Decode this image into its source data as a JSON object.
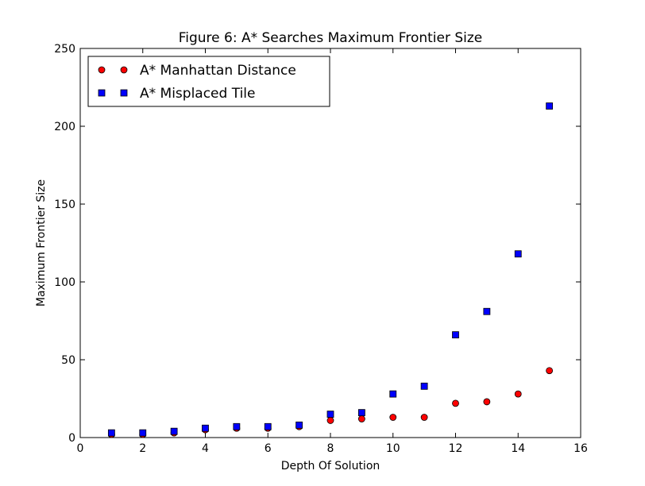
{
  "chart_data": {
    "type": "scatter",
    "title": "Figure 6: A* Searches Maximum Frontier Size",
    "xlabel": "Depth Of Solution",
    "ylabel": "Maximum Frontier Size",
    "xlim": [
      0,
      16
    ],
    "ylim": [
      0,
      250
    ],
    "xticks": [
      "0",
      "2",
      "4",
      "6",
      "8",
      "10",
      "12",
      "14",
      "16"
    ],
    "yticks": [
      "0",
      "50",
      "100",
      "150",
      "200",
      "250"
    ],
    "grid": false,
    "legend_position": "top-left",
    "x": [
      1,
      2,
      3,
      4,
      5,
      6,
      7,
      8,
      9,
      10,
      11,
      12,
      13,
      14,
      15
    ],
    "series": [
      {
        "name": "A* Manhattan Distance",
        "marker": "circle",
        "color": "#ff0000",
        "values": [
          2,
          2,
          3,
          5,
          6,
          6,
          7,
          11,
          12,
          13,
          13,
          22,
          23,
          28,
          43
        ]
      },
      {
        "name": "A* Misplaced Tile",
        "marker": "square",
        "color": "#0000ff",
        "values": [
          3,
          3,
          4,
          6,
          7,
          7,
          8,
          15,
          16,
          28,
          33,
          66,
          81,
          118,
          213
        ]
      }
    ]
  }
}
